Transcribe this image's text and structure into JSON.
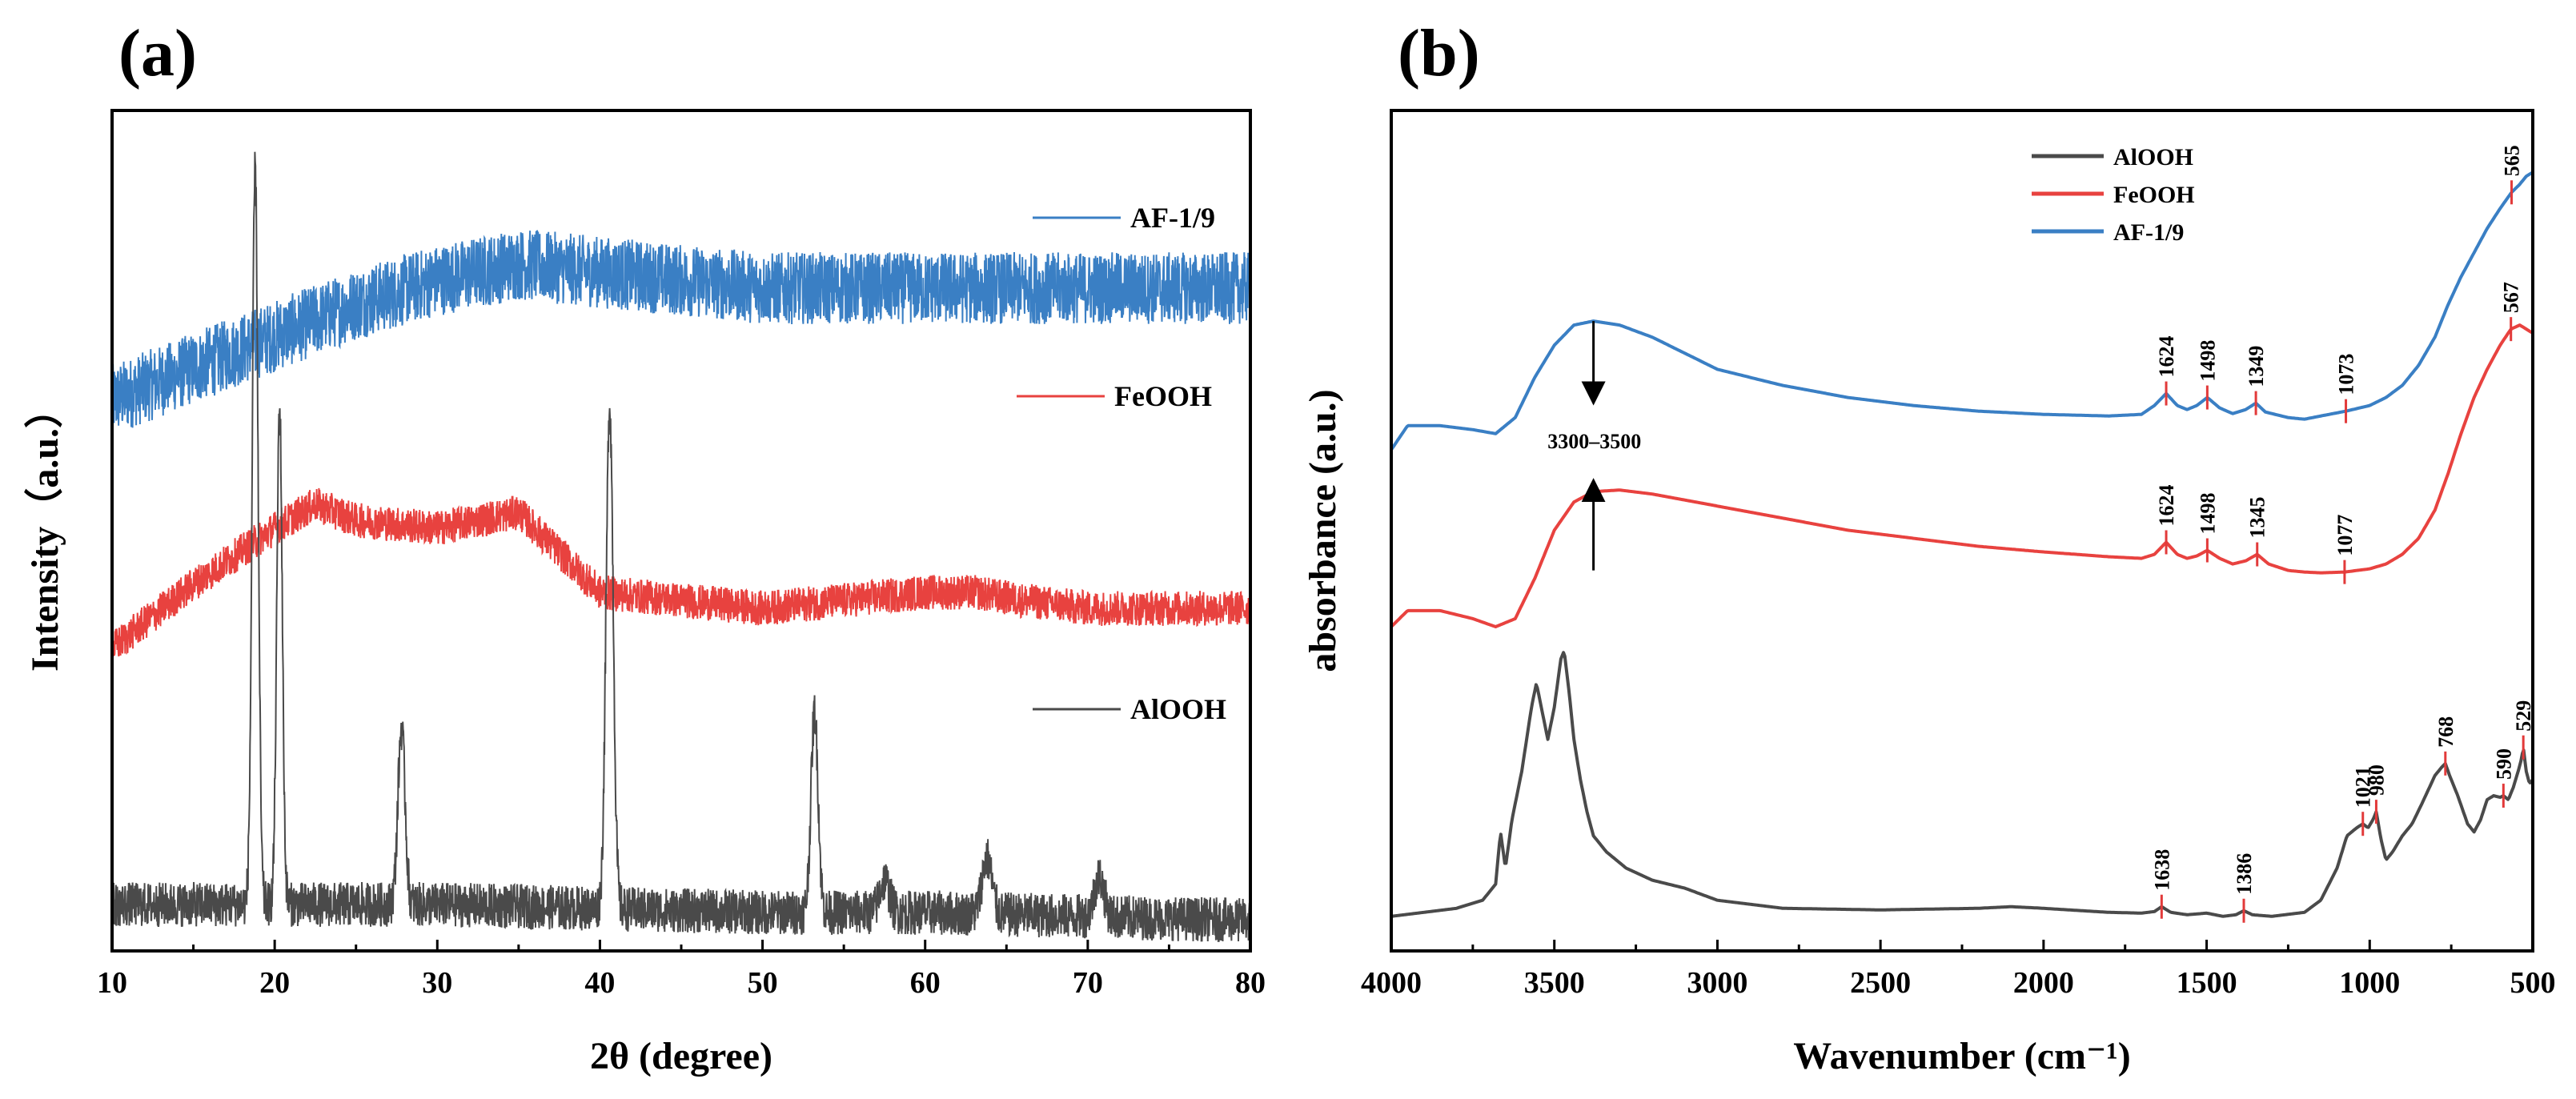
{
  "chart_data": [
    {
      "panel": "(a)",
      "type": "line",
      "xlabel": "2θ (degree)",
      "ylabel": "Intensity（a.u.）",
      "xlim": [
        10,
        80
      ],
      "xticks": [
        10,
        20,
        30,
        40,
        50,
        60,
        70,
        80
      ],
      "y_ticks_shown": false,
      "legend_style": "labels beside each curve",
      "series": [
        {
          "name": "AF-1/9",
          "color": "#3a7fc4",
          "noise": 0.045,
          "x": [
            10,
            15,
            20,
            25,
            30,
            35,
            40,
            45,
            50,
            55,
            60,
            65,
            70,
            75,
            80
          ],
          "y": [
            0.66,
            0.7,
            0.74,
            0.78,
            0.81,
            0.83,
            0.82,
            0.81,
            0.8,
            0.8,
            0.8,
            0.8,
            0.8,
            0.8,
            0.8
          ]
        },
        {
          "name": "FeOOH",
          "color": "#e8423f",
          "noise": 0.022,
          "x": [
            10,
            15,
            20,
            22.5,
            25,
            30,
            35,
            38,
            40,
            45,
            50,
            55,
            60,
            63,
            66,
            70,
            75,
            80
          ],
          "y": [
            0.35,
            0.43,
            0.5,
            0.53,
            0.51,
            0.5,
            0.52,
            0.46,
            0.42,
            0.41,
            0.4,
            0.41,
            0.42,
            0.42,
            0.41,
            0.4,
            0.4,
            0.4
          ]
        },
        {
          "name": "AlOOH",
          "color": "#4a4a4a",
          "noise": 0.028,
          "x": [
            10,
            20,
            30,
            40,
            50,
            60,
            70,
            80
          ],
          "y": [
            0.03,
            0.03,
            0.03,
            0.025,
            0.02,
            0.02,
            0.015,
            0.01
          ],
          "peaks": [
            {
              "x": 18.8,
              "height": 0.92,
              "width": 0.18
            },
            {
              "x": 20.3,
              "height": 0.62,
              "width": 0.17
            },
            {
              "x": 27.8,
              "height": 0.22,
              "width": 0.22
            },
            {
              "x": 40.6,
              "height": 0.63,
              "width": 0.22
            },
            {
              "x": 53.2,
              "height": 0.25,
              "width": 0.22
            },
            {
              "x": 57.5,
              "height": 0.04,
              "width": 0.3
            },
            {
              "x": 63.8,
              "height": 0.07,
              "width": 0.3
            },
            {
              "x": 70.7,
              "height": 0.05,
              "width": 0.3
            }
          ]
        }
      ]
    },
    {
      "panel": "(b)",
      "type": "line",
      "xlabel": "Wavenumber (cm⁻¹)",
      "ylabel": "absorbance (a.u.)",
      "xlim": [
        4000,
        500
      ],
      "xticks": [
        4000,
        3500,
        3000,
        2500,
        2000,
        1500,
        1000,
        500
      ],
      "y_ticks_shown": false,
      "legend": [
        "AlOOH",
        "FeOOH",
        "AF-1/9"
      ],
      "legend_location": "top-center",
      "annotations": [
        {
          "text": "3300–3500",
          "x": 3300,
          "y": 0.63
        },
        {
          "text": "",
          "type": "arrow",
          "x": 3380,
          "from_y": 0.78,
          "to_y": 0.69
        },
        {
          "text": "",
          "type": "arrow",
          "x": 3380,
          "from_y": 0.47,
          "to_y": 0.57
        }
      ],
      "series": [
        {
          "name": "AF-1/9",
          "color": "#3a7fc4",
          "x": [
            4000,
            3950,
            3850,
            3750,
            3680,
            3620,
            3560,
            3500,
            3440,
            3380,
            3300,
            3200,
            3000,
            2800,
            2600,
            2400,
            2200,
            2000,
            1800,
            1700,
            1660,
            1624,
            1590,
            1560,
            1530,
            1498,
            1460,
            1420,
            1380,
            1349,
            1320,
            1250,
            1200,
            1150,
            1073,
            1000,
            950,
            900,
            850,
            800,
            760,
            720,
            680,
            640,
            600,
            565,
            540,
            520,
            500
          ],
          "y": [
            0.62,
            0.65,
            0.65,
            0.645,
            0.64,
            0.66,
            0.71,
            0.75,
            0.775,
            0.78,
            0.775,
            0.76,
            0.72,
            0.7,
            0.685,
            0.675,
            0.668,
            0.664,
            0.662,
            0.664,
            0.675,
            0.69,
            0.675,
            0.67,
            0.675,
            0.685,
            0.672,
            0.665,
            0.67,
            0.678,
            0.667,
            0.66,
            0.658,
            0.662,
            0.668,
            0.675,
            0.685,
            0.7,
            0.725,
            0.76,
            0.8,
            0.835,
            0.865,
            0.895,
            0.92,
            0.94,
            0.95,
            0.96,
            0.965
          ]
        },
        {
          "name": "FeOOH",
          "color": "#e8423f",
          "x": [
            4000,
            3950,
            3850,
            3750,
            3680,
            3620,
            3560,
            3500,
            3440,
            3380,
            3300,
            3200,
            3000,
            2800,
            2600,
            2400,
            2200,
            2000,
            1800,
            1700,
            1660,
            1624,
            1590,
            1560,
            1530,
            1498,
            1460,
            1420,
            1380,
            1345,
            1310,
            1250,
            1200,
            1150,
            1077,
            1000,
            950,
            900,
            850,
            800,
            760,
            720,
            680,
            640,
            600,
            567,
            540,
            520,
            500
          ],
          "y": [
            0.4,
            0.42,
            0.42,
            0.41,
            0.4,
            0.41,
            0.46,
            0.52,
            0.555,
            0.568,
            0.57,
            0.565,
            0.55,
            0.535,
            0.52,
            0.51,
            0.5,
            0.493,
            0.487,
            0.485,
            0.49,
            0.505,
            0.49,
            0.485,
            0.488,
            0.495,
            0.485,
            0.478,
            0.482,
            0.49,
            0.478,
            0.47,
            0.468,
            0.467,
            0.468,
            0.472,
            0.478,
            0.49,
            0.51,
            0.545,
            0.59,
            0.64,
            0.685,
            0.72,
            0.75,
            0.77,
            0.775,
            0.77,
            0.765
          ]
        },
        {
          "name": "AlOOH",
          "color": "#4a4a4a",
          "x": [
            4000,
            3900,
            3800,
            3720,
            3680,
            3665,
            3650,
            3630,
            3600,
            3570,
            3555,
            3540,
            3520,
            3500,
            3480,
            3470,
            3455,
            3440,
            3420,
            3400,
            3380,
            3340,
            3280,
            3200,
            3100,
            3000,
            2800,
            2500,
            2200,
            2100,
            2000,
            1800,
            1700,
            1660,
            1638,
            1610,
            1560,
            1500,
            1450,
            1410,
            1386,
            1360,
            1300,
            1200,
            1150,
            1100,
            1070,
            1040,
            1021,
            1005,
            990,
            980,
            965,
            950,
            930,
            900,
            870,
            840,
            800,
            780,
            768,
            755,
            730,
            700,
            680,
            660,
            640,
            620,
            600,
            590,
            575,
            560,
            545,
            535,
            529,
            520,
            510,
            500
          ],
          "y": [
            0.04,
            0.045,
            0.05,
            0.06,
            0.08,
            0.145,
            0.1,
            0.16,
            0.22,
            0.3,
            0.33,
            0.3,
            0.26,
            0.3,
            0.36,
            0.37,
            0.32,
            0.26,
            0.21,
            0.17,
            0.14,
            0.12,
            0.1,
            0.085,
            0.075,
            0.06,
            0.05,
            0.048,
            0.05,
            0.052,
            0.05,
            0.045,
            0.044,
            0.046,
            0.052,
            0.045,
            0.042,
            0.044,
            0.04,
            0.042,
            0.047,
            0.042,
            0.04,
            0.045,
            0.06,
            0.1,
            0.14,
            0.15,
            0.155,
            0.15,
            0.16,
            0.17,
            0.135,
            0.11,
            0.12,
            0.14,
            0.155,
            0.18,
            0.215,
            0.225,
            0.23,
            0.215,
            0.19,
            0.155,
            0.145,
            0.16,
            0.185,
            0.19,
            0.188,
            0.19,
            0.185,
            0.2,
            0.22,
            0.235,
            0.25,
            0.22,
            0.205,
            0.21
          ]
        }
      ],
      "peak_labels": [
        {
          "series": "AF-1/9",
          "labels": [
            "1624",
            "1498",
            "1349",
            "1073",
            "565"
          ],
          "x": [
            1624,
            1498,
            1349,
            1073,
            565
          ]
        },
        {
          "series": "FeOOH",
          "labels": [
            "1624",
            "1498",
            "1345",
            "1077",
            "567"
          ],
          "x": [
            1624,
            1498,
            1345,
            1077,
            567
          ]
        },
        {
          "series": "AlOOH",
          "labels": [
            "1638",
            "1386",
            "1021",
            "980",
            "768",
            "590",
            "529"
          ],
          "x": [
            1638,
            1386,
            1021,
            980,
            768,
            590,
            529
          ]
        }
      ]
    }
  ]
}
